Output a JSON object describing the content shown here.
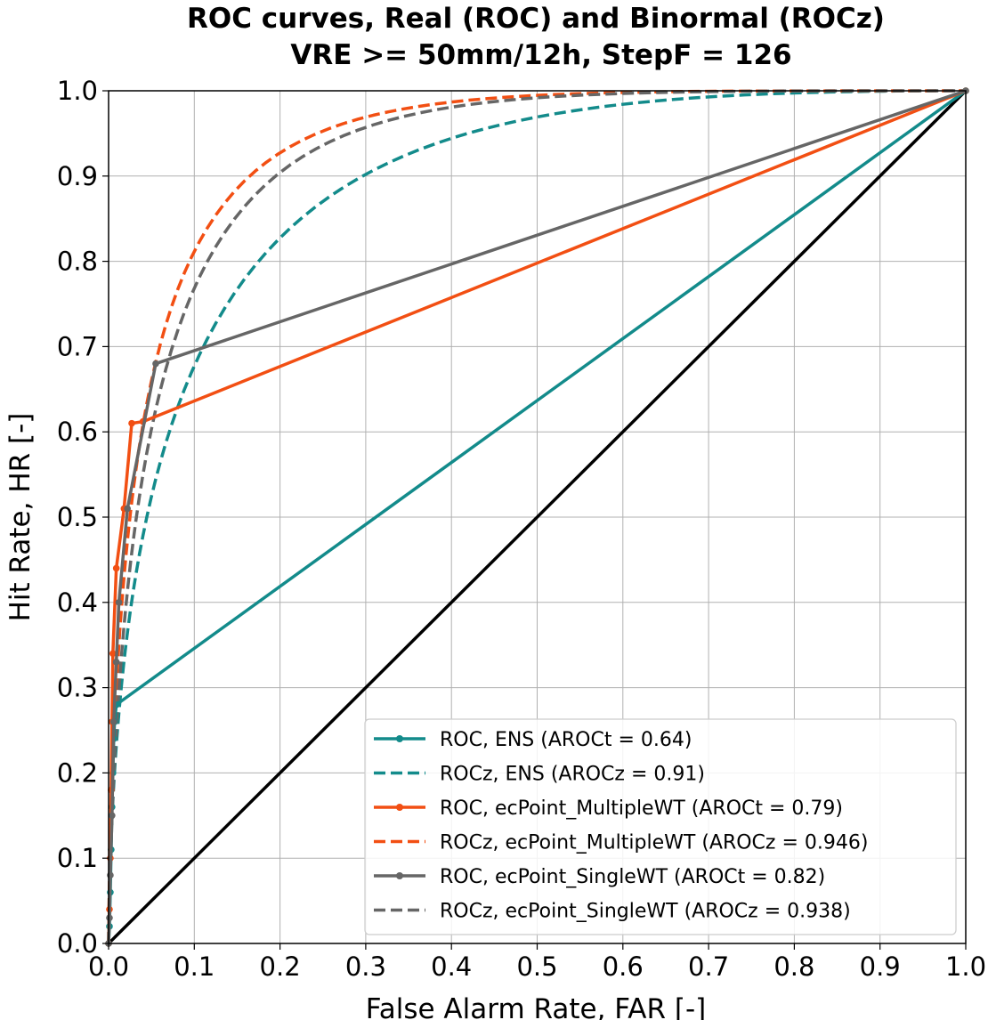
{
  "chart_data": {
    "type": "line",
    "title": "ROC curves, Real (ROC) and Binormal (ROCz)",
    "subtitle": "VRE >= 50mm/12h, StepF = 126",
    "xlabel": "False Alarm Rate, FAR [-]",
    "ylabel": "Hit Rate, HR [-]",
    "xlim": [
      0,
      1
    ],
    "ylim": [
      0,
      1
    ],
    "xticks": [
      "0.0",
      "0.1",
      "0.2",
      "0.3",
      "0.4",
      "0.5",
      "0.6",
      "0.7",
      "0.8",
      "0.9",
      "1.0"
    ],
    "yticks": [
      "0.0",
      "0.1",
      "0.2",
      "0.3",
      "0.4",
      "0.5",
      "0.6",
      "0.7",
      "0.8",
      "0.9",
      "1.0"
    ],
    "grid": true,
    "legend_position": "lower-right",
    "series": [
      {
        "name": "ROC, ENS (AROCt = 0.64)",
        "color": "#138b8b",
        "style": "solid-marker",
        "points": [
          [
            0,
            0
          ],
          [
            0.001,
            0.02
          ],
          [
            0.002,
            0.06
          ],
          [
            0.003,
            0.11
          ],
          [
            0.004,
            0.16
          ],
          [
            0.005,
            0.2
          ],
          [
            0.006,
            0.24
          ],
          [
            0.007,
            0.26
          ],
          [
            0.009,
            0.28
          ],
          [
            1,
            1
          ]
        ]
      },
      {
        "name": "ROCz, ENS (AROCz = 0.91)",
        "color": "#138b8b",
        "style": "dashed",
        "binormal": {
          "a": 1.87,
          "b": 1.1
        }
      },
      {
        "name": "ROC, ecPoint_MultipleWT (AROCt = 0.79)",
        "color": "#f24f13",
        "style": "solid-marker",
        "points": [
          [
            0,
            0
          ],
          [
            0.001,
            0.04
          ],
          [
            0.002,
            0.1
          ],
          [
            0.003,
            0.18
          ],
          [
            0.004,
            0.26
          ],
          [
            0.005,
            0.34
          ],
          [
            0.009,
            0.44
          ],
          [
            0.018,
            0.51
          ],
          [
            0.027,
            0.61
          ],
          [
            0.04,
            0.612
          ],
          [
            1,
            1
          ]
        ]
      },
      {
        "name": "ROCz, ecPoint_MultipleWT (AROCz = 0.946)",
        "color": "#f24f13",
        "style": "dashed",
        "binormal": {
          "a": 2.55,
          "b": 1.3
        }
      },
      {
        "name": "ROC, ecPoint_SingleWT (AROCt = 0.82)",
        "color": "#666666",
        "style": "solid-marker",
        "points": [
          [
            0,
            0
          ],
          [
            0.001,
            0.03
          ],
          [
            0.002,
            0.08
          ],
          [
            0.004,
            0.15
          ],
          [
            0.006,
            0.26
          ],
          [
            0.009,
            0.33
          ],
          [
            0.012,
            0.4
          ],
          [
            0.022,
            0.51
          ],
          [
            0.055,
            0.68
          ],
          [
            1,
            1
          ]
        ]
      },
      {
        "name": "ROCz, ecPoint_SingleWT (AROCz = 0.938)",
        "color": "#666666",
        "style": "dashed",
        "binormal": {
          "a": 2.4,
          "b": 1.3
        }
      }
    ],
    "diagonal": {
      "color": "#000000",
      "points": [
        [
          0,
          0
        ],
        [
          1,
          1
        ]
      ]
    }
  }
}
